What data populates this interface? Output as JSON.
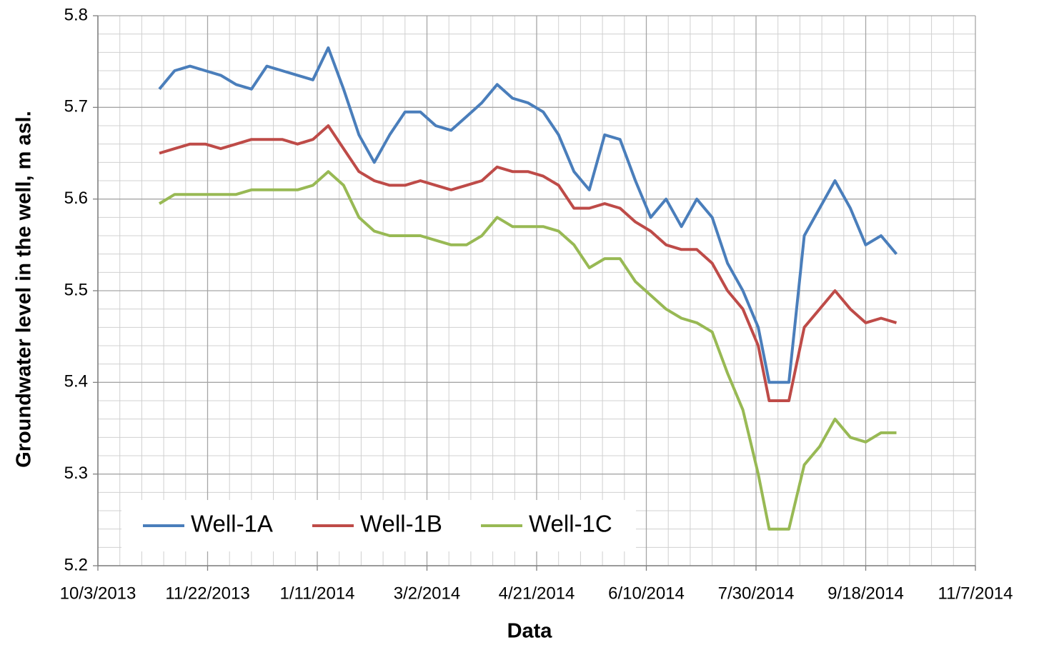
{
  "chart_data": {
    "type": "line",
    "xlabel": "Data",
    "ylabel": "Groundwater level in the well, m asl.",
    "x": [
      "2013-10-31",
      "2013-11-07",
      "2013-11-14",
      "2013-11-21",
      "2013-11-28",
      "2013-12-05",
      "2013-12-12",
      "2013-12-19",
      "2013-12-26",
      "2014-01-02",
      "2014-01-09",
      "2014-01-16",
      "2014-01-23",
      "2014-01-30",
      "2014-02-06",
      "2014-02-13",
      "2014-02-20",
      "2014-02-27",
      "2014-03-06",
      "2014-03-13",
      "2014-03-20",
      "2014-03-27",
      "2014-04-03",
      "2014-04-10",
      "2014-04-17",
      "2014-04-24",
      "2014-05-01",
      "2014-05-08",
      "2014-05-15",
      "2014-05-22",
      "2014-05-29",
      "2014-06-05",
      "2014-06-12",
      "2014-06-19",
      "2014-06-26",
      "2014-07-03",
      "2014-07-10",
      "2014-07-17",
      "2014-07-24",
      "2014-07-31",
      "2014-08-05",
      "2014-08-14",
      "2014-08-21",
      "2014-08-28",
      "2014-09-04",
      "2014-09-11",
      "2014-09-18",
      "2014-09-25",
      "2014-10-02"
    ],
    "series": [
      {
        "name": "Well-1A",
        "color": "#4a7ebb",
        "values": [
          5.72,
          5.74,
          5.745,
          5.74,
          5.735,
          5.725,
          5.72,
          5.745,
          5.74,
          5.735,
          5.73,
          5.765,
          5.72,
          5.67,
          5.64,
          5.67,
          5.695,
          5.695,
          5.68,
          5.675,
          5.69,
          5.705,
          5.725,
          5.71,
          5.705,
          5.695,
          5.67,
          5.63,
          5.61,
          5.67,
          5.665,
          5.62,
          5.58,
          5.6,
          5.57,
          5.6,
          5.58,
          5.53,
          5.5,
          5.46,
          5.4,
          5.4,
          5.56,
          5.59,
          5.62,
          5.59,
          5.55,
          5.56,
          5.54
        ]
      },
      {
        "name": "Well-1B",
        "color": "#be4b48",
        "values": [
          5.65,
          5.655,
          5.66,
          5.66,
          5.655,
          5.66,
          5.665,
          5.665,
          5.665,
          5.66,
          5.665,
          5.68,
          5.655,
          5.63,
          5.62,
          5.615,
          5.615,
          5.62,
          5.615,
          5.61,
          5.615,
          5.62,
          5.635,
          5.63,
          5.63,
          5.625,
          5.615,
          5.59,
          5.59,
          5.595,
          5.59,
          5.575,
          5.565,
          5.55,
          5.545,
          5.545,
          5.53,
          5.5,
          5.48,
          5.44,
          5.38,
          5.38,
          5.46,
          5.48,
          5.5,
          5.48,
          5.465,
          5.47,
          5.465
        ]
      },
      {
        "name": "Well-1C",
        "color": "#98b954",
        "values": [
          5.595,
          5.605,
          5.605,
          5.605,
          5.605,
          5.605,
          5.61,
          5.61,
          5.61,
          5.61,
          5.615,
          5.63,
          5.615,
          5.58,
          5.565,
          5.56,
          5.56,
          5.56,
          5.555,
          5.55,
          5.55,
          5.56,
          5.58,
          5.57,
          5.57,
          5.57,
          5.565,
          5.55,
          5.525,
          5.535,
          5.535,
          5.51,
          5.495,
          5.48,
          5.47,
          5.465,
          5.455,
          5.41,
          5.37,
          5.3,
          5.24,
          5.24,
          5.31,
          5.33,
          5.36,
          5.34,
          5.335,
          5.345,
          5.345
        ]
      }
    ],
    "xlim": [
      "2013-10-03",
      "2014-11-07"
    ],
    "xticks": [
      {
        "value": "2013-10-03",
        "label": "10/3/2013"
      },
      {
        "value": "2013-11-22",
        "label": "11/22/2013"
      },
      {
        "value": "2014-01-11",
        "label": "1/11/2014"
      },
      {
        "value": "2014-03-02",
        "label": "3/2/2014"
      },
      {
        "value": "2014-04-21",
        "label": "4/21/2014"
      },
      {
        "value": "2014-06-10",
        "label": "6/10/2014"
      },
      {
        "value": "2014-07-30",
        "label": "7/30/2014"
      },
      {
        "value": "2014-09-18",
        "label": "9/18/2014"
      },
      {
        "value": "2014-11-07",
        "label": "11/7/2014"
      }
    ],
    "ylim": [
      5.2,
      5.8
    ],
    "yticks": [
      5.2,
      5.3,
      5.4,
      5.5,
      5.6,
      5.7,
      5.8
    ],
    "grid": true,
    "legend": "lower left"
  }
}
